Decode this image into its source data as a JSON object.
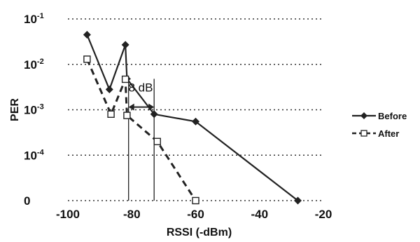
{
  "chart_data": {
    "type": "line",
    "xlabel": "RSSI (-dBm)",
    "ylabel": "PER",
    "xlim": [
      -100,
      -20
    ],
    "x_ticks": [
      "-100",
      "-80",
      "-60",
      "-40",
      "-20"
    ],
    "y_ticks": [
      {
        "base": "0",
        "exp": ""
      },
      {
        "base": "10",
        "exp": "-4"
      },
      {
        "base": "10",
        "exp": "-3"
      },
      {
        "base": "10",
        "exp": "-2"
      },
      {
        "base": "10",
        "exp": "-1"
      }
    ],
    "y_scale": "log, with bottom gridline labeled 0",
    "grid": "horizontal dotted",
    "legend": "right",
    "series": [
      {
        "name": "Before",
        "marker": "filled diamond",
        "line": "solid",
        "color": "#222222",
        "points": [
          {
            "x": -94,
            "y": 0.045
          },
          {
            "x": -87,
            "y": 0.0028
          },
          {
            "x": -82,
            "y": 0.027
          },
          {
            "x": -81.5,
            "y": 0.0048
          },
          {
            "x": -73,
            "y": 0.0008
          },
          {
            "x": -60,
            "y": 0.00055
          },
          {
            "x": -28,
            "y": 0
          }
        ]
      },
      {
        "name": "After",
        "marker": "open square",
        "line": "dashed",
        "color": "#222222",
        "points": [
          {
            "x": -94,
            "y": 0.013
          },
          {
            "x": -86.5,
            "y": 0.0008
          },
          {
            "x": -82,
            "y": 0.0047
          },
          {
            "x": -81.5,
            "y": 0.00075
          },
          {
            "x": -72,
            "y": 0.0002
          },
          {
            "x": -60,
            "y": 0
          }
        ]
      }
    ],
    "annotations": [
      {
        "text": "8 dB",
        "x_from": -81,
        "x_to": -73,
        "y": 0.00115
      }
    ]
  }
}
